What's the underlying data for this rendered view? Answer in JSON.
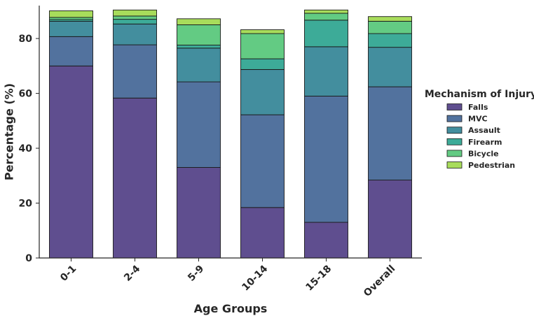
{
  "chart_data": {
    "type": "bar",
    "stacked": true,
    "title": "",
    "xlabel": "Age Groups",
    "ylabel": "Percentage (%)",
    "ylim": [
      0,
      92
    ],
    "yticks": [
      0,
      20,
      40,
      60,
      80
    ],
    "categories": [
      "0-1",
      "2-4",
      "5-9",
      "10-14",
      "15-18",
      "Overall"
    ],
    "legend_title": "Mechanism of Injury",
    "legend_position": "right",
    "series": [
      {
        "name": "Falls",
        "color": "#5f4e8f",
        "values": [
          70.0,
          58.3,
          33.0,
          18.4,
          13.0,
          28.4
        ]
      },
      {
        "name": "MVC",
        "color": "#52729e",
        "values": [
          10.7,
          19.4,
          31.2,
          33.8,
          46.0,
          34.0
        ]
      },
      {
        "name": "Assault",
        "color": "#438e9e",
        "values": [
          5.6,
          7.6,
          12.3,
          16.5,
          18.0,
          14.4
        ]
      },
      {
        "name": "Firearm",
        "color": "#3dab98",
        "values": [
          0.6,
          1.7,
          1.1,
          3.9,
          9.7,
          5.0
        ]
      },
      {
        "name": "Bicycle",
        "color": "#63cb83",
        "values": [
          0.8,
          1.2,
          7.4,
          9.2,
          2.5,
          4.5
        ]
      },
      {
        "name": "Pedestrian",
        "color": "#a8dc5b",
        "values": [
          2.4,
          2.2,
          2.2,
          1.4,
          1.2,
          1.7
        ]
      }
    ]
  }
}
